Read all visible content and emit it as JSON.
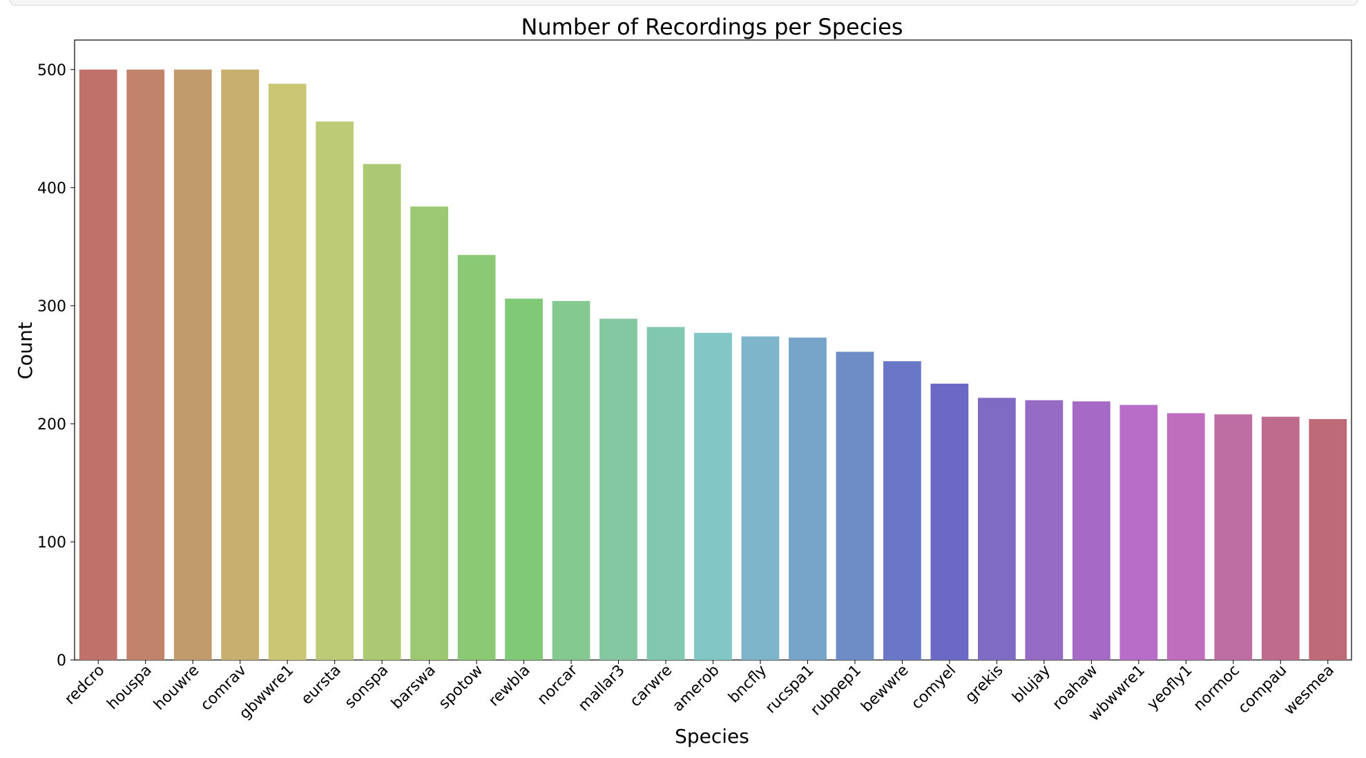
{
  "chart_data": {
    "type": "bar",
    "title": "Number of Recordings per Species",
    "xlabel": "Species",
    "ylabel": "Count",
    "ylim": [
      0,
      525
    ],
    "yticks": [
      0,
      100,
      200,
      300,
      400,
      500
    ],
    "grid": false,
    "categories": [
      "redcro",
      "houspa",
      "houwre",
      "comrav",
      "gbwwre1",
      "eursta",
      "sonspa",
      "barswa",
      "spotow",
      "rewbla",
      "norcar",
      "mallar3",
      "carwre",
      "amerob",
      "bncfly",
      "rucspa1",
      "rubpep1",
      "bewwre",
      "comyel",
      "grekis",
      "blujay",
      "roahaw",
      "wbwwre1",
      "yeofly1",
      "normoc",
      "compau",
      "wesmea"
    ],
    "values": [
      500,
      500,
      500,
      500,
      488,
      456,
      420,
      384,
      343,
      306,
      304,
      289,
      282,
      277,
      274,
      273,
      261,
      253,
      234,
      222,
      220,
      219,
      216,
      209,
      208,
      206,
      204
    ],
    "colors": [
      "#C0716A",
      "#C2836B",
      "#C29B6C",
      "#C6AF6F",
      "#CBC674",
      "#BECB76",
      "#ABC873",
      "#9CC873",
      "#8CC975",
      "#80C976",
      "#84C98F",
      "#83C8A0",
      "#82C8B1",
      "#83C6C6",
      "#7EB5CA",
      "#76A5C9",
      "#6E8CC5",
      "#6A77C7",
      "#6C68C5",
      "#7F6BC3",
      "#956BC4",
      "#A46AC5",
      "#B86DC8",
      "#BF6EBE",
      "#BF6EA4",
      "#BF6C8C",
      "#BF6A77"
    ]
  }
}
